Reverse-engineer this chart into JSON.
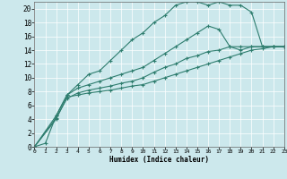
{
  "xlabel": "Humidex (Indice chaleur)",
  "bg_color": "#cce8ec",
  "line_color": "#2e7d6e",
  "grid_color": "#ffffff",
  "xlim": [
    0,
    23
  ],
  "ylim": [
    0,
    21
  ],
  "xticks": [
    0,
    1,
    2,
    3,
    4,
    5,
    6,
    7,
    8,
    9,
    10,
    11,
    12,
    13,
    14,
    15,
    16,
    17,
    18,
    19,
    20,
    21,
    22,
    23
  ],
  "yticks": [
    0,
    2,
    4,
    6,
    8,
    10,
    12,
    14,
    16,
    18,
    20
  ],
  "line1_x": [
    0,
    1,
    2,
    3,
    4,
    5,
    6,
    7,
    8,
    9,
    10,
    11,
    12,
    13,
    14,
    15,
    16,
    17,
    18,
    19,
    20,
    21,
    22,
    23
  ],
  "line1_y": [
    0,
    0.5,
    4.5,
    7.5,
    9.0,
    10.5,
    11.0,
    12.5,
    14.0,
    15.5,
    16.5,
    18.0,
    19.0,
    20.5,
    21.0,
    21.0,
    20.5,
    21.0,
    20.5,
    20.5,
    19.5,
    14.5,
    14.5,
    14.5
  ],
  "line2_x": [
    0,
    2,
    3,
    4,
    5,
    6,
    7,
    8,
    9,
    10,
    11,
    12,
    13,
    14,
    15,
    16,
    17,
    18,
    19,
    20,
    21,
    22,
    23
  ],
  "line2_y": [
    0,
    4.5,
    7.5,
    8.5,
    9.0,
    9.5,
    10.0,
    10.5,
    11.0,
    11.5,
    12.5,
    13.5,
    14.5,
    15.5,
    16.5,
    17.5,
    17.0,
    14.5,
    14.0,
    14.5,
    14.5,
    14.5,
    14.5
  ],
  "line3_x": [
    0,
    2,
    3,
    4,
    5,
    6,
    7,
    8,
    9,
    10,
    11,
    12,
    13,
    14,
    15,
    16,
    17,
    18,
    19,
    20,
    21,
    22,
    23
  ],
  "line3_y": [
    0,
    4.2,
    7.0,
    7.8,
    8.2,
    8.5,
    8.8,
    9.2,
    9.5,
    10.0,
    10.8,
    11.5,
    12.0,
    12.8,
    13.2,
    13.8,
    14.0,
    14.5,
    14.5,
    14.5,
    14.5,
    14.5,
    14.5
  ],
  "line4_x": [
    0,
    2,
    3,
    4,
    5,
    6,
    7,
    8,
    9,
    10,
    11,
    12,
    13,
    14,
    15,
    16,
    17,
    18,
    19,
    20,
    21,
    22,
    23
  ],
  "line4_y": [
    0,
    4.0,
    7.2,
    7.5,
    7.8,
    8.0,
    8.2,
    8.5,
    8.8,
    9.0,
    9.5,
    10.0,
    10.5,
    11.0,
    11.5,
    12.0,
    12.5,
    13.0,
    13.5,
    14.0,
    14.2,
    14.5,
    14.5
  ]
}
